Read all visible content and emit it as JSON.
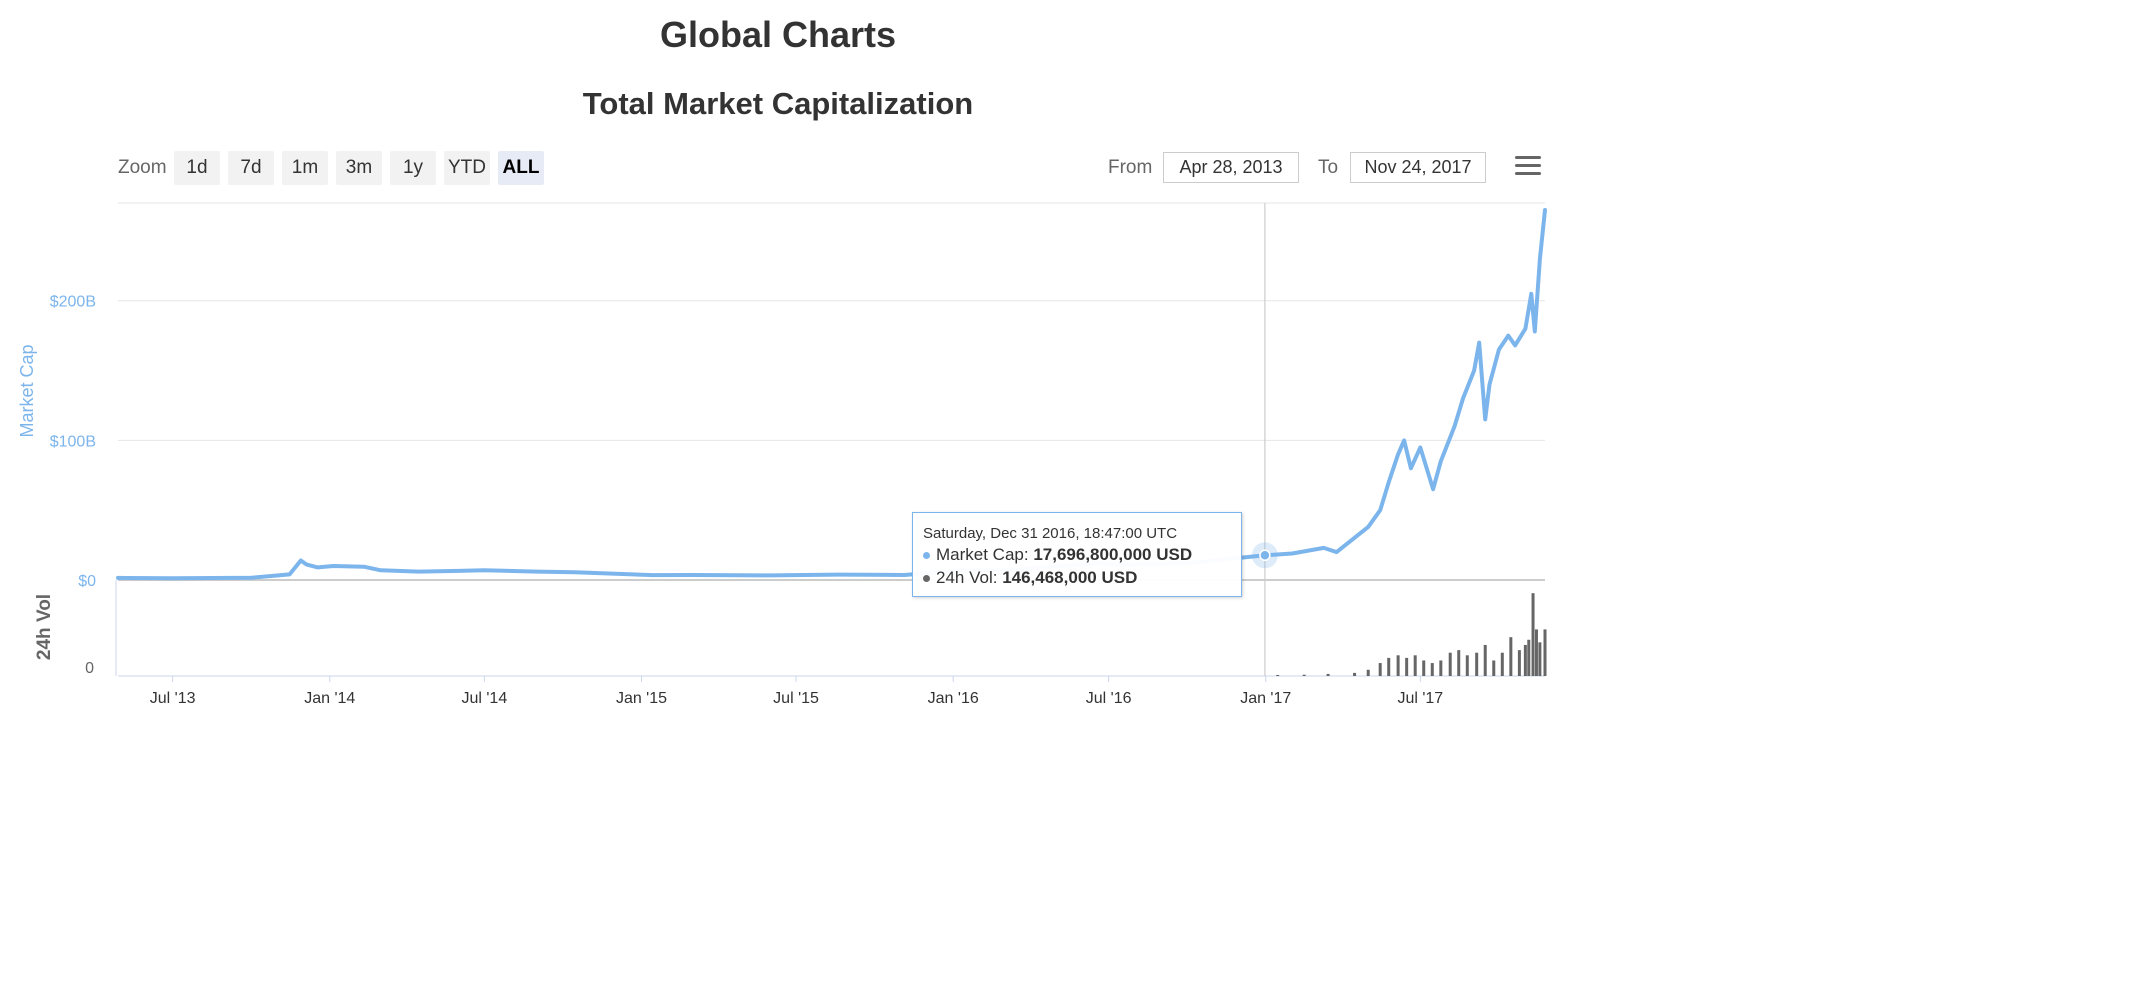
{
  "page": {
    "title": "Global Charts"
  },
  "toolbar": {
    "zoom_label": "Zoom",
    "zoom_buttons": [
      "1d",
      "7d",
      "1m",
      "3m",
      "1y",
      "YTD",
      "ALL"
    ],
    "active_zoom": "ALL",
    "from_label": "From",
    "from_value": "Apr 28, 2013",
    "to_label": "To",
    "to_value": "Nov 24, 2017",
    "menu_icon": "hamburger-menu-icon"
  },
  "tooltip": {
    "date": "Saturday, Dec 31 2016, 18:47:00 UTC",
    "market_cap_label": "Market Cap:",
    "market_cap_value": "17,696,800,000 USD",
    "volume_label": "24h Vol:",
    "volume_value": "146,468,000 USD"
  },
  "chart_data": {
    "type": "line",
    "title": "Total Market Capitalization",
    "colors": {
      "market_cap": "#7cb5ec",
      "volume": "#666666",
      "crosshair": "#cccccc",
      "grid": "#e6e6e6"
    },
    "x_tick_labels": [
      "Jul '13",
      "Jan '14",
      "Jul '14",
      "Jan '15",
      "Jul '15",
      "Jan '16",
      "Jul '16",
      "Jan '17",
      "Jul '17"
    ],
    "x_tick_dates": [
      "2013-07-01",
      "2014-01-01",
      "2014-07-01",
      "2015-01-01",
      "2015-07-01",
      "2016-01-01",
      "2016-07-01",
      "2017-01-01",
      "2017-07-01"
    ],
    "xlim": [
      "2013-04-28",
      "2017-11-24"
    ],
    "panes": [
      {
        "ylabel": "Market Cap",
        "ylim": [
          0,
          270
        ],
        "y_unit": "billion USD",
        "y_tick_values": [
          0,
          100,
          200
        ],
        "y_tick_labels": [
          "$0",
          "$100B",
          "$200B"
        ],
        "grid": true,
        "series": [
          {
            "name": "Market Cap",
            "x": [
              "2013-04-28",
              "2013-07-01",
              "2013-10-01",
              "2013-11-15",
              "2013-11-28",
              "2013-12-05",
              "2013-12-18",
              "2014-01-05",
              "2014-02-10",
              "2014-03-01",
              "2014-04-15",
              "2014-06-01",
              "2014-07-01",
              "2014-09-01",
              "2014-10-15",
              "2015-01-14",
              "2015-03-01",
              "2015-06-01",
              "2015-08-20",
              "2015-11-05",
              "2016-01-01",
              "2016-03-01",
              "2016-06-18",
              "2016-07-15",
              "2016-10-01",
              "2016-12-31",
              "2017-02-01",
              "2017-03-10",
              "2017-03-25",
              "2017-05-01",
              "2017-05-15",
              "2017-05-25",
              "2017-06-05",
              "2017-06-12",
              "2017-06-20",
              "2017-07-01",
              "2017-07-16",
              "2017-07-25",
              "2017-08-10",
              "2017-08-20",
              "2017-09-02",
              "2017-09-08",
              "2017-09-15",
              "2017-09-20",
              "2017-10-01",
              "2017-10-12",
              "2017-10-20",
              "2017-11-01",
              "2017-11-08",
              "2017-11-12",
              "2017-11-18",
              "2017-11-24"
            ],
            "values": [
              1.5,
              1.2,
              1.6,
              4,
              14,
              11,
              9,
              10,
              9.5,
              7,
              6,
              6.5,
              7,
              6,
              5.5,
              3.5,
              3.6,
              3.3,
              3.9,
              3.6,
              6.5,
              7,
              12,
              11,
              12,
              17.7,
              19,
              23,
              20,
              38,
              50,
              70,
              90,
              100,
              80,
              95,
              65,
              85,
              110,
              130,
              150,
              170,
              115,
              140,
              165,
              175,
              168,
              180,
              205,
              178,
              230,
              265
            ]
          }
        ]
      },
      {
        "ylabel": "24h Vol",
        "y_tick_values": [
          0
        ],
        "y_tick_labels": [
          "0"
        ],
        "grid": false,
        "series": [
          {
            "name": "24h Vol",
            "type": "column",
            "ylim": [
              0,
              17
            ],
            "y_unit": "billion USD",
            "x": [
              "2017-01-15",
              "2017-02-15",
              "2017-03-15",
              "2017-04-15",
              "2017-05-01",
              "2017-05-15",
              "2017-05-25",
              "2017-06-05",
              "2017-06-15",
              "2017-06-25",
              "2017-07-05",
              "2017-07-15",
              "2017-07-25",
              "2017-08-05",
              "2017-08-15",
              "2017-08-25",
              "2017-09-05",
              "2017-09-15",
              "2017-09-25",
              "2017-10-05",
              "2017-10-15",
              "2017-10-25",
              "2017-11-01",
              "2017-11-05",
              "2017-11-10",
              "2017-11-14",
              "2017-11-18",
              "2017-11-24"
            ],
            "values": [
              0.2,
              0.25,
              0.4,
              0.6,
              1.2,
              2.5,
              3.5,
              4,
              3.5,
              4,
              3,
              2.5,
              3,
              4.5,
              5,
              4,
              4.5,
              6,
              3,
              4.5,
              7.5,
              5,
              6,
              7,
              16,
              9,
              6.5,
              9
            ]
          }
        ]
      }
    ],
    "highlight_point": {
      "date": "2016-12-31",
      "market_cap": 17.6968,
      "volume": 0.146468
    }
  }
}
